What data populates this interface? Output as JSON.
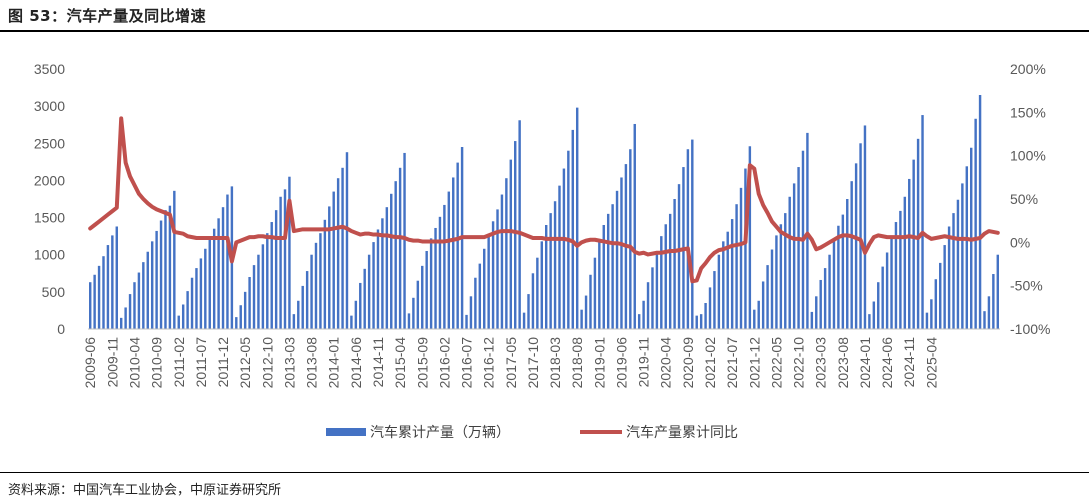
{
  "header": {
    "title": "图 53：汽车产量及同比增速"
  },
  "footer": {
    "source": "资料来源：中国汽车工业协会，中原证券研究所"
  },
  "chart_data": {
    "type": "bar+line",
    "title": "汽车产量及同比增速",
    "colors": {
      "bar": "#4472C4",
      "line": "#C0504D",
      "axis_text": "#595959"
    },
    "y_left": {
      "min": 0,
      "max": 3500,
      "step": 500,
      "ticks": [
        "0",
        "500",
        "1000",
        "1500",
        "2000",
        "2500",
        "3000",
        "3500"
      ]
    },
    "y_right": {
      "min": -100,
      "max": 200,
      "step": 50,
      "ticks": [
        "-100%",
        "-50%",
        "0%",
        "50%",
        "100%",
        "150%",
        "200%"
      ]
    },
    "x_tick_labels": [
      "2009-06",
      "2009-11",
      "2010-04",
      "2010-09",
      "2011-02",
      "2011-07",
      "2011-12",
      "2012-05",
      "2012-10",
      "2013-03",
      "2013-08",
      "2014-01",
      "2014-06",
      "2014-11",
      "2015-04",
      "2015-09",
      "2016-02",
      "2016-07",
      "2016-12",
      "2017-05",
      "2017-10",
      "2018-03",
      "2018-08",
      "2019-01",
      "2019-06",
      "2019-11",
      "2020-04",
      "2020-09",
      "2021-02",
      "2021-07",
      "2021-12",
      "2022-05",
      "2022-10",
      "2023-03",
      "2023-08",
      "2024-01",
      "2024-06",
      "2024-11",
      "2025-04"
    ],
    "series": [
      {
        "name": "汽车累计产量（万辆）",
        "type": "bar",
        "axis": "left",
        "start": "2009-06",
        "values": [
          630,
          730,
          850,
          980,
          1130,
          1260,
          1380,
          150,
          290,
          470,
          630,
          760,
          900,
          1040,
          1180,
          1320,
          1460,
          1600,
          1660,
          1860,
          180,
          330,
          510,
          690,
          820,
          950,
          1080,
          1210,
          1350,
          1490,
          1640,
          1810,
          1920,
          160,
          320,
          500,
          700,
          860,
          1000,
          1140,
          1290,
          1440,
          1600,
          1780,
          1880,
          2050,
          200,
          380,
          580,
          780,
          1000,
          1160,
          1290,
          1470,
          1650,
          1850,
          2030,
          2170,
          2380,
          180,
          380,
          620,
          810,
          1000,
          1170,
          1340,
          1490,
          1640,
          1820,
          1990,
          2170,
          2370,
          210,
          420,
          650,
          850,
          1050,
          1220,
          1360,
          1510,
          1670,
          1850,
          2040,
          2240,
          2450,
          190,
          440,
          690,
          880,
          1080,
          1280,
          1450,
          1610,
          1810,
          2030,
          2280,
          2530,
          2810,
          220,
          470,
          750,
          960,
          1180,
          1400,
          1560,
          1720,
          1930,
          2160,
          2400,
          2680,
          2980,
          260,
          450,
          730,
          960,
          1180,
          1400,
          1550,
          1680,
          1860,
          2040,
          2220,
          2420,
          2760,
          200,
          380,
          630,
          830,
          1050,
          1250,
          1410,
          1550,
          1750,
          1950,
          2180,
          2420,
          2550,
          180,
          200,
          350,
          560,
          780,
          1000,
          1180,
          1310,
          1480,
          1680,
          1900,
          2160,
          2460,
          260,
          380,
          640,
          860,
          1070,
          1260,
          1410,
          1560,
          1780,
          1960,
          2180,
          2400,
          2640,
          230,
          440,
          660,
          820,
          1000,
          1210,
          1390,
          1540,
          1750,
          1990,
          2230,
          2500,
          2740,
          200,
          370,
          630,
          840,
          1030,
          1260,
          1440,
          1590,
          1780,
          2020,
          2280,
          2560,
          2880,
          220,
          400,
          670,
          890,
          1130,
          1380,
          1560,
          1740,
          1960,
          2190,
          2440,
          2830,
          3150,
          240,
          440,
          740,
          1000
        ]
      },
      {
        "name": "汽车产量累计同比",
        "type": "line",
        "axis": "right",
        "start": "2009-06",
        "values": [
          16,
          20,
          24,
          28,
          32,
          36,
          40,
          143,
          92,
          76,
          66,
          56,
          50,
          45,
          41,
          38,
          36,
          34,
          32,
          12,
          11,
          10,
          7,
          6,
          5,
          5,
          5,
          5,
          5,
          5,
          5,
          5,
          -22,
          0,
          2,
          4,
          6,
          6,
          7,
          7,
          6,
          6,
          5,
          5,
          5,
          48,
          13,
          14,
          15,
          15,
          15,
          15,
          15,
          15,
          15,
          16,
          17,
          18,
          16,
          13,
          11,
          9,
          10,
          10,
          9,
          9,
          8,
          8,
          7,
          6,
          6,
          5,
          3,
          2,
          2,
          1,
          1,
          1,
          1,
          1,
          1,
          2,
          3,
          4,
          6,
          6,
          6,
          6,
          6,
          6,
          8,
          10,
          12,
          13,
          13,
          13,
          12,
          11,
          9,
          7,
          5,
          5,
          5,
          4,
          4,
          4,
          4,
          4,
          3,
          1,
          -4,
          0,
          2,
          3,
          3,
          2,
          1,
          0,
          -1,
          -1,
          -2,
          -4,
          -5,
          -11,
          -13,
          -12,
          -14,
          -13,
          -12,
          -12,
          -11,
          -10,
          -10,
          -9,
          -8,
          -7,
          -45,
          -44,
          -30,
          -24,
          -17,
          -12,
          -9,
          -8,
          -6,
          -4,
          -3,
          -2,
          0,
          89,
          85,
          56,
          43,
          34,
          24,
          18,
          12,
          9,
          6,
          4,
          4,
          3,
          10,
          3,
          -8,
          -6,
          -3,
          0,
          3,
          6,
          8,
          8,
          7,
          5,
          3,
          -12,
          -2,
          6,
          8,
          7,
          6,
          6,
          6,
          6,
          6,
          7,
          6,
          5,
          11,
          7,
          4,
          5,
          6,
          7,
          6,
          5,
          4,
          4,
          4,
          3,
          4,
          5,
          10,
          13,
          12,
          11
        ]
      }
    ],
    "legend": {
      "placement": "bottom",
      "items": [
        "汽车累计产量（万辆）",
        "汽车产量累计同比"
      ]
    }
  }
}
